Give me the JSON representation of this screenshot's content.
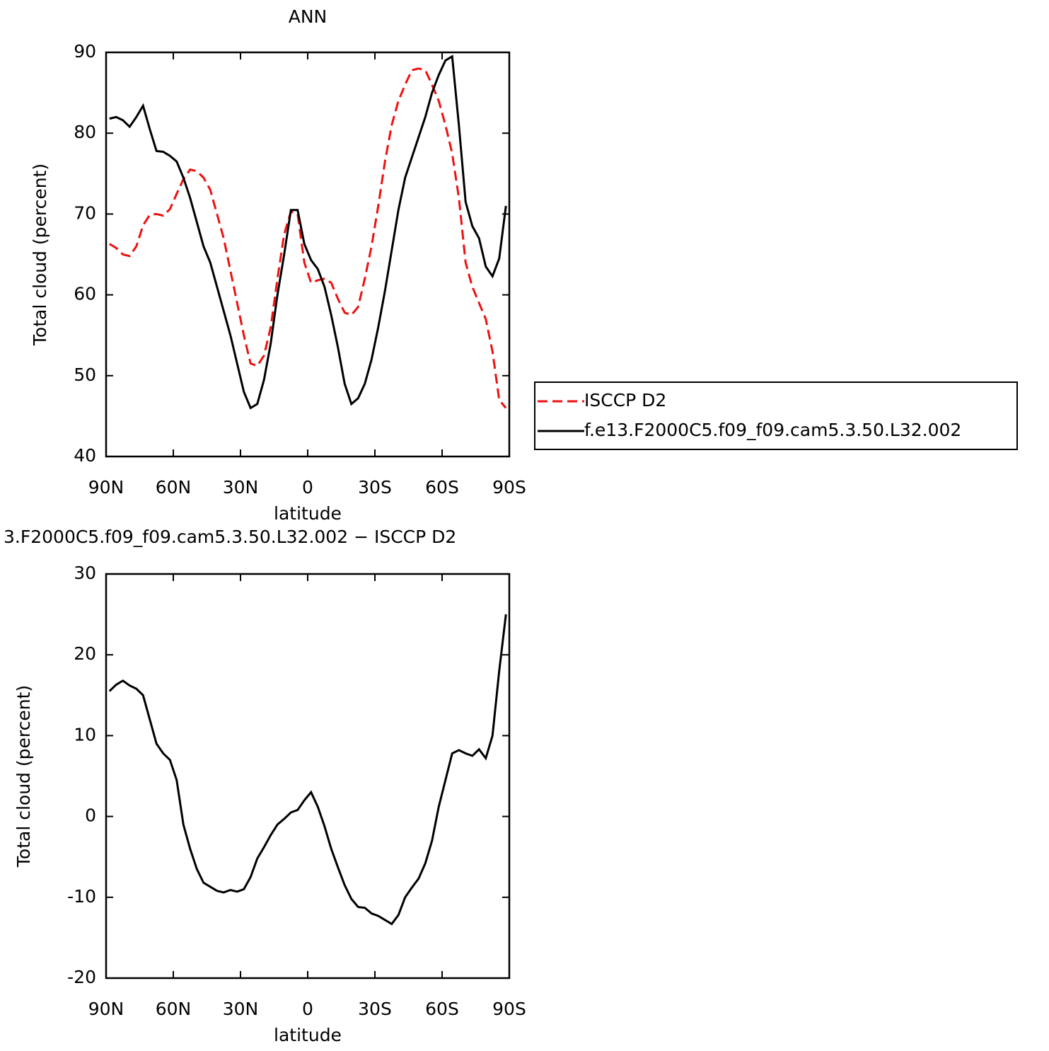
{
  "chart_data": [
    {
      "type": "line",
      "title": "ANN",
      "xlabel": "latitude",
      "ylabel": "Total cloud (percent)",
      "x": [
        88.5,
        85.5,
        82.5,
        79.5,
        76.5,
        73.5,
        70.5,
        67.5,
        64.5,
        61.5,
        58.5,
        55.5,
        52.5,
        49.5,
        46.5,
        43.5,
        40.5,
        37.5,
        34.5,
        31.5,
        28.5,
        25.5,
        22.5,
        19.5,
        16.5,
        13.5,
        10.5,
        7.5,
        4.5,
        1.5,
        -1.5,
        -4.5,
        -7.5,
        -10.5,
        -13.5,
        -16.5,
        -19.5,
        -22.5,
        -25.5,
        -28.5,
        -31.5,
        -34.5,
        -37.5,
        -40.5,
        -43.5,
        -46.5,
        -49.5,
        -52.5,
        -55.5,
        -58.5,
        -61.5,
        -64.5,
        -67.5,
        -70.5,
        -73.5,
        -76.5,
        -79.5,
        -82.5,
        -85.5,
        -88.5
      ],
      "series": [
        {
          "name": "ISCCP D2",
          "color": "#ee1111",
          "style": "dashed",
          "values": [
            66.3,
            65.8,
            65,
            64.8,
            66,
            68.6,
            69.9,
            70,
            69.8,
            70.6,
            72.5,
            74.3,
            75.5,
            75.3,
            74.5,
            73,
            70,
            67,
            63,
            59,
            55,
            51.5,
            51.2,
            52.5,
            56,
            62,
            67.5,
            70.3,
            70,
            64,
            61.5,
            61.8,
            62,
            61.5,
            59.5,
            57.8,
            57.5,
            58.5,
            62,
            66,
            71,
            76.5,
            81,
            84,
            86,
            87.8,
            88,
            87.8,
            86,
            84,
            81,
            77.5,
            72,
            64,
            61,
            59,
            57,
            53,
            47,
            46
          ]
        },
        {
          "name": "f.e13.F2000C5.f09_f09.cam5.3.50.L32.002",
          "color": "#000000",
          "style": "solid",
          "values": [
            81.8,
            82.0,
            81.6,
            80.8,
            82.0,
            83.4,
            80.5,
            77.8,
            77.7,
            77.2,
            76.5,
            74.5,
            72,
            69,
            66,
            64,
            61,
            58,
            55,
            51.5,
            48,
            46,
            46.5,
            49.5,
            54,
            60,
            65,
            70.5,
            70.5,
            66.3,
            64.3,
            63.2,
            61,
            57.5,
            53.5,
            49,
            46.5,
            47.2,
            49,
            52,
            56,
            60.5,
            65.5,
            70.5,
            74.5,
            77,
            79.5,
            82,
            85,
            87.2,
            89,
            89.5,
            81,
            71.5,
            68.5,
            67,
            63.5,
            62.3,
            64.5,
            71
          ]
        }
      ],
      "xlim": [
        90,
        -90
      ],
      "xticks": [
        {
          "value": 90,
          "label": "90N"
        },
        {
          "value": 60,
          "label": "60N"
        },
        {
          "value": 30,
          "label": "30N"
        },
        0,
        {
          "value": -30,
          "label": "30S"
        },
        {
          "value": -60,
          "label": "60S"
        },
        {
          "value": -90,
          "label": "90S"
        }
      ],
      "ylim": [
        40,
        90
      ],
      "yticks": [
        40,
        50,
        60,
        70,
        80,
        90
      ],
      "legend": "outside-right"
    },
    {
      "type": "line",
      "title": "3.F2000C5.f09_f09.cam5.3.50.L32.002 − ISCCP D2",
      "xlabel": "latitude",
      "ylabel": "Total cloud (percent)",
      "x": [
        88.5,
        85.5,
        82.5,
        79.5,
        76.5,
        73.5,
        70.5,
        67.5,
        64.5,
        61.5,
        58.5,
        55.5,
        52.5,
        49.5,
        46.5,
        43.5,
        40.5,
        37.5,
        34.5,
        31.5,
        28.5,
        25.5,
        22.5,
        19.5,
        16.5,
        13.5,
        10.5,
        7.5,
        4.5,
        1.5,
        -1.5,
        -4.5,
        -7.5,
        -10.5,
        -13.5,
        -16.5,
        -19.5,
        -22.5,
        -25.5,
        -28.5,
        -31.5,
        -34.5,
        -37.5,
        -40.5,
        -43.5,
        -46.5,
        -49.5,
        -52.5,
        -55.5,
        -58.5,
        -61.5,
        -64.5,
        -67.5,
        -70.5,
        -73.5,
        -76.5,
        -79.5,
        -82.5,
        -85.5,
        -88.5
      ],
      "series": [
        {
          "color": "#000000",
          "style": "solid",
          "values": [
            15.5,
            16.3,
            16.8,
            16.2,
            15.8,
            15,
            12,
            9,
            7.8,
            7,
            4.5,
            -1,
            -4,
            -6.5,
            -8.2,
            -8.7,
            -9.2,
            -9.4,
            -9.1,
            -9.3,
            -9,
            -7.5,
            -5.2,
            -3.8,
            -2.3,
            -1,
            -0.3,
            0.5,
            0.8,
            2,
            3,
            1.2,
            -1.2,
            -4,
            -6.3,
            -8.5,
            -10.2,
            -11.2,
            -11.3,
            -12,
            -12.3,
            -12.8,
            -13.3,
            -12.2,
            -10,
            -8.8,
            -7.7,
            -5.8,
            -3,
            1.2,
            4.5,
            7.8,
            8.2,
            7.8,
            7.5,
            8.3,
            7.2,
            10,
            18,
            25
          ]
        }
      ],
      "xlim": [
        90,
        -90
      ],
      "xticks": [
        {
          "value": 90,
          "label": "90N"
        },
        {
          "value": 60,
          "label": "60N"
        },
        {
          "value": 30,
          "label": "30N"
        },
        0,
        {
          "value": -30,
          "label": "30S"
        },
        {
          "value": -60,
          "label": "60S"
        },
        {
          "value": -90,
          "label": "90S"
        }
      ],
      "ylim": [
        -20,
        30
      ],
      "yticks": [
        -20,
        -10,
        0,
        10,
        20,
        30
      ]
    }
  ]
}
